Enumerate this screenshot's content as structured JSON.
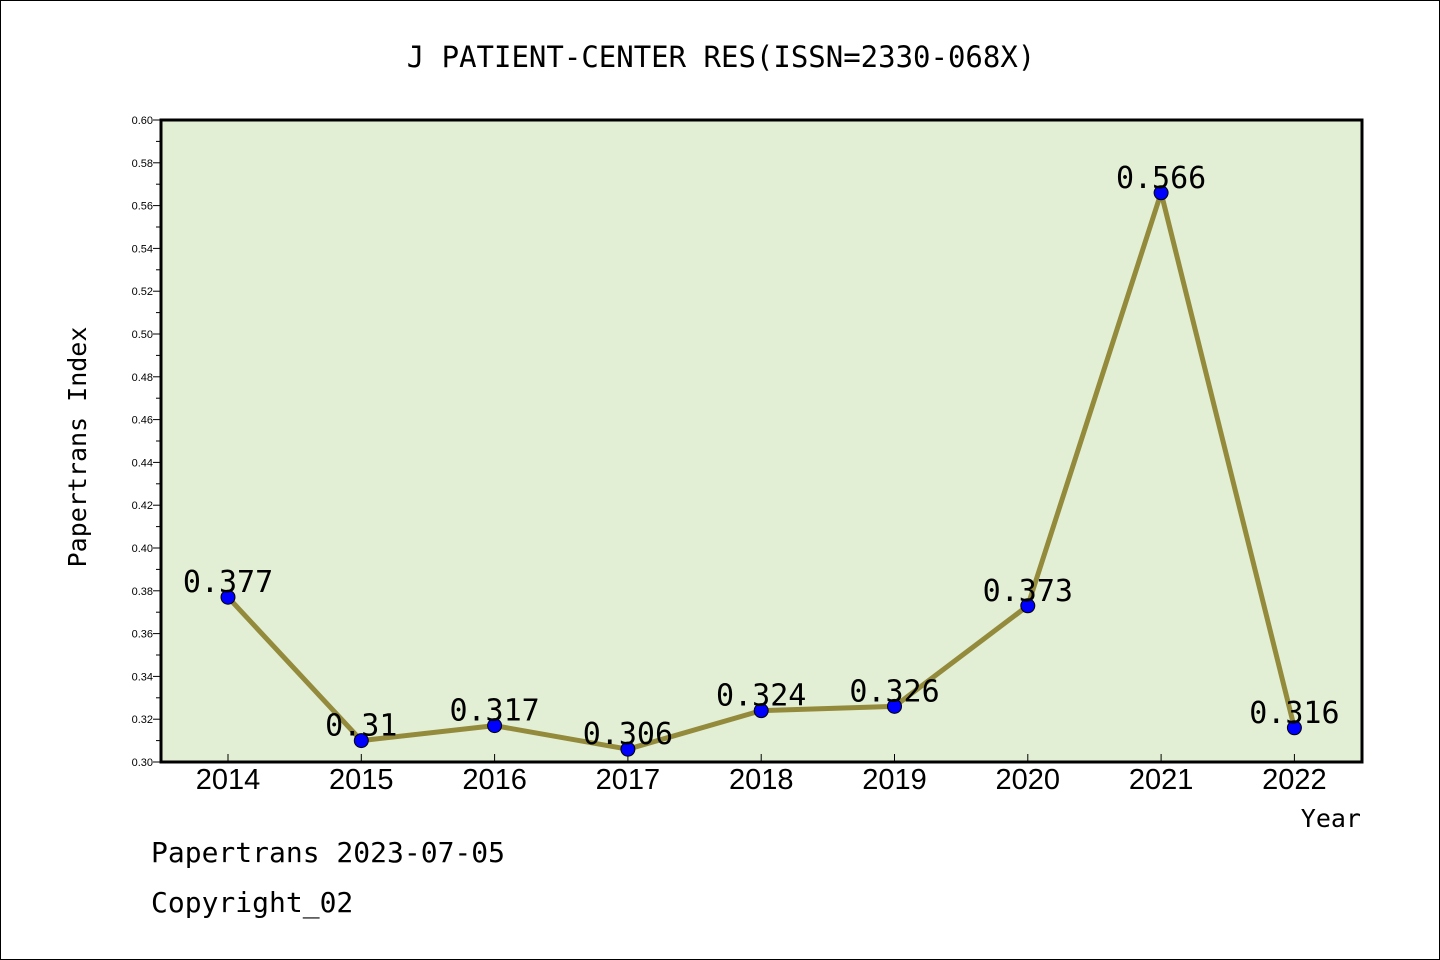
{
  "chart_data": {
    "type": "line",
    "title": "J PATIENT-CENTER RES(ISSN=2330-068X)",
    "xlabel": "Year",
    "ylabel": "Papertrans Index",
    "categories": [
      "2014",
      "2015",
      "2016",
      "2017",
      "2018",
      "2019",
      "2020",
      "2021",
      "2022"
    ],
    "values": [
      0.377,
      0.31,
      0.317,
      0.306,
      0.324,
      0.326,
      0.373,
      0.566,
      0.316
    ],
    "data_labels": [
      "0.377",
      "0.31",
      "0.317",
      "0.306",
      "0.324",
      "0.326",
      "0.373",
      "0.566",
      "0.316"
    ],
    "ylim": [
      0.3,
      0.6
    ],
    "yticks": [
      "0.30",
      "0.32",
      "0.34",
      "0.36",
      "0.38",
      "0.40",
      "0.42",
      "0.44",
      "0.46",
      "0.48",
      "0.50",
      "0.52",
      "0.54",
      "0.56",
      "0.58",
      "0.60"
    ],
    "grid": false,
    "colors": {
      "plot_background": "#e2efd5",
      "line": "#938a3b",
      "marker": "#0000ff"
    }
  },
  "footer": {
    "source": "Papertrans 2023-07-05",
    "copyright": "Copyright_02"
  }
}
